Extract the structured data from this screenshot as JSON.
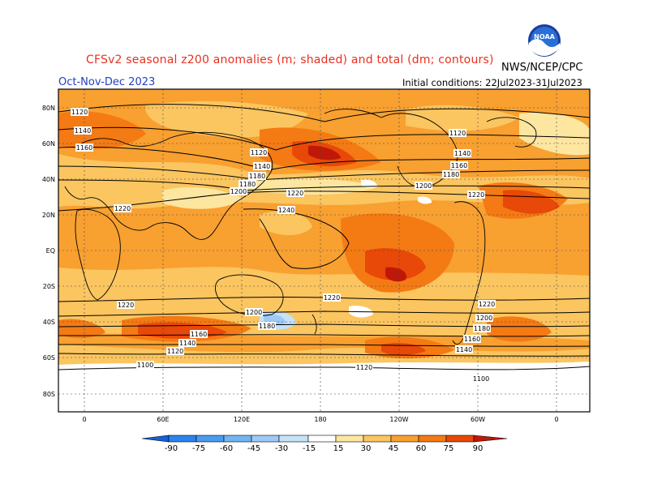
{
  "header": {
    "title": "CFSv2 seasonal z200 anomalies (m; shaded) and total (dm; contours)",
    "agency": "NWS/NCEP/CPC",
    "season": "Oct-Nov-Dec 2023",
    "initial_conditions": "Initial conditions: 22Jul2023-31Jul2023",
    "logo_text": "NOAA"
  },
  "map": {
    "lat_labels": [
      "80N",
      "60N",
      "40N",
      "20N",
      "EQ",
      "20S",
      "40S",
      "60S",
      "80S"
    ],
    "lon_labels": [
      "0",
      "60E",
      "120E",
      "180",
      "120W",
      "60W",
      "0"
    ],
    "contour_labels": [
      "1120",
      "1140",
      "1160",
      "1180",
      "1200",
      "1220",
      "1240",
      "1100"
    ]
  },
  "legend": {
    "values": [
      "-90",
      "-75",
      "-60",
      "-45",
      "-30",
      "-15",
      "15",
      "30",
      "45",
      "60",
      "75",
      "90"
    ],
    "colors": [
      "#1560d8",
      "#2a84ec",
      "#4a9cf0",
      "#72b4f4",
      "#9ecaf6",
      "#c4e2f8",
      "#ffffff",
      "#fde6a0",
      "#fbc560",
      "#f8a030",
      "#f47a14",
      "#e84808",
      "#c01808"
    ]
  }
}
